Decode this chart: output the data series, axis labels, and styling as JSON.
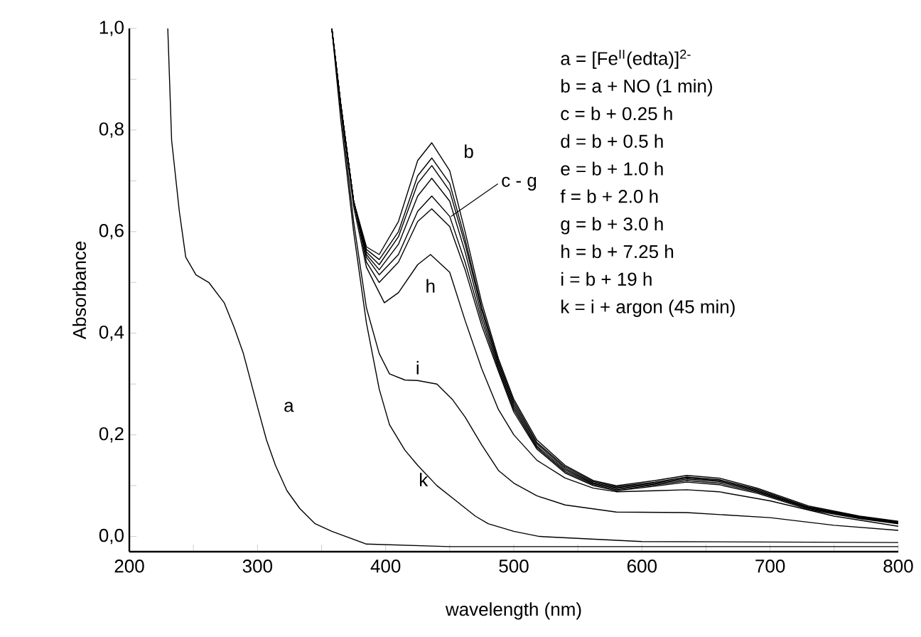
{
  "chart_data": {
    "type": "line",
    "xlabel": "wavelength (nm)",
    "ylabel": "Absorbance",
    "xlim": [
      200,
      800
    ],
    "ylim": [
      -0.03,
      1.0
    ],
    "xticks": [
      200,
      {
        "value": 250,
        "label": null
      },
      300,
      {
        "value": 350,
        "label": null
      },
      400,
      {
        "value": 450,
        "label": null
      },
      500,
      {
        "value": 550,
        "label": null
      },
      600,
      {
        "value": 650,
        "label": null
      },
      700,
      {
        "value": 750,
        "label": null
      },
      800
    ],
    "yticks": [
      {
        "value": 0,
        "label": "0,0"
      },
      {
        "value": 0.1,
        "label": null
      },
      {
        "value": 0.2,
        "label": "0,2"
      },
      {
        "value": 0.3,
        "label": null
      },
      {
        "value": 0.4,
        "label": "0,4"
      },
      {
        "value": 0.5,
        "label": null
      },
      {
        "value": 0.6,
        "label": "0,6"
      },
      {
        "value": 0.7,
        "label": null
      },
      {
        "value": 0.8,
        "label": "0,8"
      },
      {
        "value": 0.9,
        "label": null
      },
      {
        "value": 1.0,
        "label": "1,0"
      }
    ],
    "series": [
      {
        "color": "#000000",
        "x": [
          230,
          233,
          239,
          244,
          252,
          262,
          274,
          282,
          289,
          300,
          307,
          314,
          323,
          333,
          345,
          358,
          385,
          450,
          600,
          800
        ],
        "values": [
          1.0,
          0.78,
          0.64,
          0.55,
          0.515,
          0.5,
          0.46,
          0.41,
          0.36,
          0.255,
          0.19,
          0.14,
          0.09,
          0.055,
          0.025,
          0.01,
          -0.015,
          -0.02,
          -0.02,
          -0.02
        ]
      },
      {
        "color": "#000000",
        "x": [
          358,
          365,
          375,
          385,
          395,
          410,
          425,
          436,
          450,
          462,
          475,
          488,
          500,
          518,
          540,
          562,
          580,
          610,
          635,
          660,
          690,
          730,
          770,
          800
        ],
        "values": [
          1.0,
          0.85,
          0.66,
          0.57,
          0.555,
          0.62,
          0.74,
          0.775,
          0.72,
          0.6,
          0.46,
          0.35,
          0.27,
          0.19,
          0.14,
          0.11,
          0.1,
          0.11,
          0.12,
          0.115,
          0.095,
          0.06,
          0.04,
          0.03
        ]
      },
      {
        "color": "#000000",
        "x": [
          358,
          365,
          375,
          385,
          395,
          410,
          425,
          436,
          450,
          462,
          475,
          488,
          500,
          518,
          540,
          562,
          580,
          610,
          635,
          660,
          690,
          730,
          770,
          800
        ],
        "values": [
          1.0,
          0.85,
          0.66,
          0.565,
          0.545,
          0.6,
          0.71,
          0.745,
          0.695,
          0.585,
          0.45,
          0.345,
          0.265,
          0.185,
          0.137,
          0.108,
          0.098,
          0.107,
          0.117,
          0.112,
          0.093,
          0.058,
          0.039,
          0.029
        ]
      },
      {
        "color": "#000000",
        "x": [
          358,
          365,
          375,
          385,
          395,
          410,
          425,
          436,
          450,
          462,
          475,
          488,
          500,
          518,
          540,
          562,
          580,
          610,
          635,
          660,
          690,
          730,
          770,
          800
        ],
        "values": [
          1.0,
          0.85,
          0.66,
          0.56,
          0.535,
          0.59,
          0.695,
          0.73,
          0.68,
          0.575,
          0.445,
          0.34,
          0.26,
          0.182,
          0.134,
          0.106,
          0.096,
          0.105,
          0.115,
          0.11,
          0.091,
          0.057,
          0.038,
          0.028
        ]
      },
      {
        "color": "#000000",
        "x": [
          358,
          365,
          375,
          385,
          395,
          410,
          425,
          436,
          450,
          462,
          475,
          488,
          500,
          518,
          540,
          562,
          580,
          610,
          635,
          660,
          690,
          730,
          770,
          800
        ],
        "values": [
          1.0,
          0.85,
          0.66,
          0.555,
          0.525,
          0.575,
          0.67,
          0.705,
          0.66,
          0.56,
          0.435,
          0.335,
          0.255,
          0.178,
          0.131,
          0.104,
          0.094,
          0.103,
          0.113,
          0.108,
          0.089,
          0.056,
          0.037,
          0.027
        ]
      },
      {
        "color": "#000000",
        "x": [
          358,
          365,
          375,
          385,
          395,
          410,
          425,
          436,
          450,
          462,
          475,
          488,
          500,
          518,
          540,
          562,
          580,
          610,
          635,
          660,
          690,
          730,
          770,
          800
        ],
        "values": [
          1.0,
          0.85,
          0.66,
          0.55,
          0.515,
          0.555,
          0.64,
          0.67,
          0.63,
          0.54,
          0.425,
          0.33,
          0.25,
          0.175,
          0.128,
          0.102,
          0.092,
          0.101,
          0.11,
          0.105,
          0.087,
          0.055,
          0.036,
          0.026
        ]
      },
      {
        "color": "#000000",
        "x": [
          358,
          365,
          375,
          385,
          395,
          410,
          425,
          436,
          450,
          462,
          475,
          488,
          500,
          518,
          540,
          562,
          580,
          610,
          635,
          660,
          690,
          730,
          770,
          800
        ],
        "values": [
          1.0,
          0.85,
          0.66,
          0.54,
          0.5,
          0.54,
          0.62,
          0.645,
          0.61,
          0.525,
          0.415,
          0.325,
          0.245,
          0.172,
          0.125,
          0.1,
          0.09,
          0.099,
          0.107,
          0.102,
          0.085,
          0.053,
          0.035,
          0.025
        ]
      },
      {
        "color": "#000000",
        "x": [
          358,
          365,
          375,
          385,
          399,
          410,
          425,
          435,
          450,
          462,
          475,
          488,
          500,
          518,
          540,
          562,
          580,
          610,
          635,
          660,
          700,
          750,
          800
        ],
        "values": [
          1.0,
          0.85,
          0.65,
          0.53,
          0.46,
          0.48,
          0.535,
          0.555,
          0.52,
          0.425,
          0.33,
          0.25,
          0.2,
          0.15,
          0.115,
          0.095,
          0.088,
          0.09,
          0.092,
          0.088,
          0.07,
          0.04,
          0.02
        ]
      },
      {
        "color": "#000000",
        "x": [
          358,
          365,
          375,
          385,
          395,
          403,
          415,
          425,
          440,
          452,
          462,
          475,
          488,
          500,
          518,
          540,
          580,
          635,
          700,
          750,
          800
        ],
        "values": [
          1.0,
          0.84,
          0.62,
          0.45,
          0.36,
          0.32,
          0.308,
          0.307,
          0.3,
          0.27,
          0.235,
          0.18,
          0.13,
          0.105,
          0.08,
          0.062,
          0.048,
          0.047,
          0.037,
          0.022,
          0.012
        ]
      },
      {
        "color": "#000000",
        "x": [
          358,
          365,
          375,
          385,
          395,
          403,
          415,
          425,
          440,
          455,
          470,
          480,
          500,
          520,
          600,
          800
        ],
        "values": [
          1.0,
          0.82,
          0.6,
          0.42,
          0.29,
          0.22,
          0.17,
          0.14,
          0.1,
          0.07,
          0.04,
          0.025,
          0.01,
          0.0,
          -0.01,
          -0.012
        ]
      }
    ],
    "annotations": [
      {
        "text": "a",
        "x": 300,
        "y": 0.255
      },
      {
        "text": "b",
        "x": 436,
        "y": 0.775
      },
      {
        "text": "c - g",
        "x": 451,
        "y": 0.63
      },
      {
        "text": "h",
        "x": 435,
        "y": 0.555
      },
      {
        "text": "i",
        "x": 425,
        "y": 0.307
      },
      {
        "text": "k",
        "x": 425,
        "y": 0.14
      },
      "a = [Fe$^{II}$(edta)]$^{2-}$",
      "b = a + NO (1 min)",
      "c = b + 0.25 h",
      "d = b + 0.5 h",
      "e = b + 1.0 h",
      "f = b + 2.0 h",
      "g = b + 3.0 h",
      "h = b + 7.25 h",
      "i = b + 19 h",
      "k = i + argon (45 min)"
    ]
  }
}
